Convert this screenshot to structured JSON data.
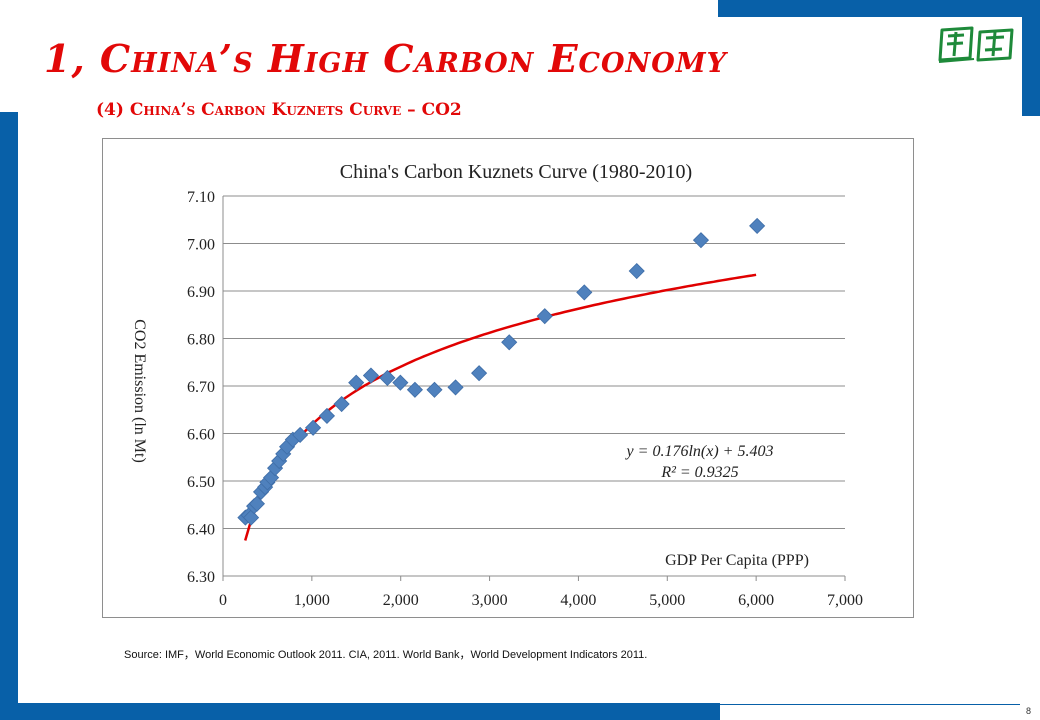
{
  "slide": {
    "title": "1, China’s High Carbon Economy",
    "subtitle": "(4) China’s Carbon Kuznets Curve – CO2",
    "source": "Source: IMF，World Economic Outlook 2011. CIA, 2011. World Bank，World Development Indicators 2011.",
    "page_number": "8"
  },
  "colors": {
    "brand_blue": "#0860a8",
    "title_red": "#e20808",
    "marker_blue": "#4f81bd",
    "trendline_red": "#e00000"
  },
  "chart_data": {
    "type": "scatter",
    "title": "China's Carbon Kuznets Curve (1980-2010)",
    "xlabel": "GDP Per Capita (PPP)",
    "ylabel": "CO2 Emission (ln Mt)",
    "xlim": [
      0,
      7000
    ],
    "ylim": [
      6.3,
      7.1
    ],
    "x_ticks": [
      "0",
      "1,000",
      "2,000",
      "3,000",
      "4,000",
      "5,000",
      "6,000",
      "7,000"
    ],
    "y_ticks": [
      "6.30",
      "6.40",
      "6.50",
      "6.60",
      "6.70",
      "6.80",
      "6.90",
      "7.00",
      "7.10"
    ],
    "grid": "horizontal",
    "legend": "none",
    "series": [
      {
        "points": [
          [
            252,
            6.423
          ],
          [
            290,
            6.428
          ],
          [
            316,
            6.423
          ],
          [
            350,
            6.447
          ],
          [
            382,
            6.452
          ],
          [
            428,
            6.477
          ],
          [
            474,
            6.487
          ],
          [
            500,
            6.497
          ],
          [
            541,
            6.507
          ],
          [
            586,
            6.527
          ],
          [
            632,
            6.542
          ],
          [
            678,
            6.557
          ],
          [
            721,
            6.572
          ],
          [
            786,
            6.587
          ],
          [
            868,
            6.597
          ],
          [
            1014,
            6.612
          ],
          [
            1170,
            6.637
          ],
          [
            1335,
            6.662
          ],
          [
            1499,
            6.707
          ],
          [
            1665,
            6.722
          ],
          [
            1850,
            6.717
          ],
          [
            1996,
            6.707
          ],
          [
            2160,
            6.692
          ],
          [
            2380,
            6.692
          ],
          [
            2617,
            6.697
          ],
          [
            2882,
            6.727
          ],
          [
            3221,
            6.792
          ],
          [
            3621,
            6.847
          ],
          [
            4066,
            6.897
          ],
          [
            4656,
            6.942
          ],
          [
            5379,
            7.007
          ],
          [
            6011,
            7.037
          ]
        ]
      }
    ],
    "trendline": {
      "type": "logarithmic",
      "a": 0.176,
      "b": 5.403,
      "x_range": [
        250,
        6000
      ],
      "equation": "y = 0.176ln(x) + 5.403",
      "r_squared": "R² = 0.9325"
    }
  }
}
